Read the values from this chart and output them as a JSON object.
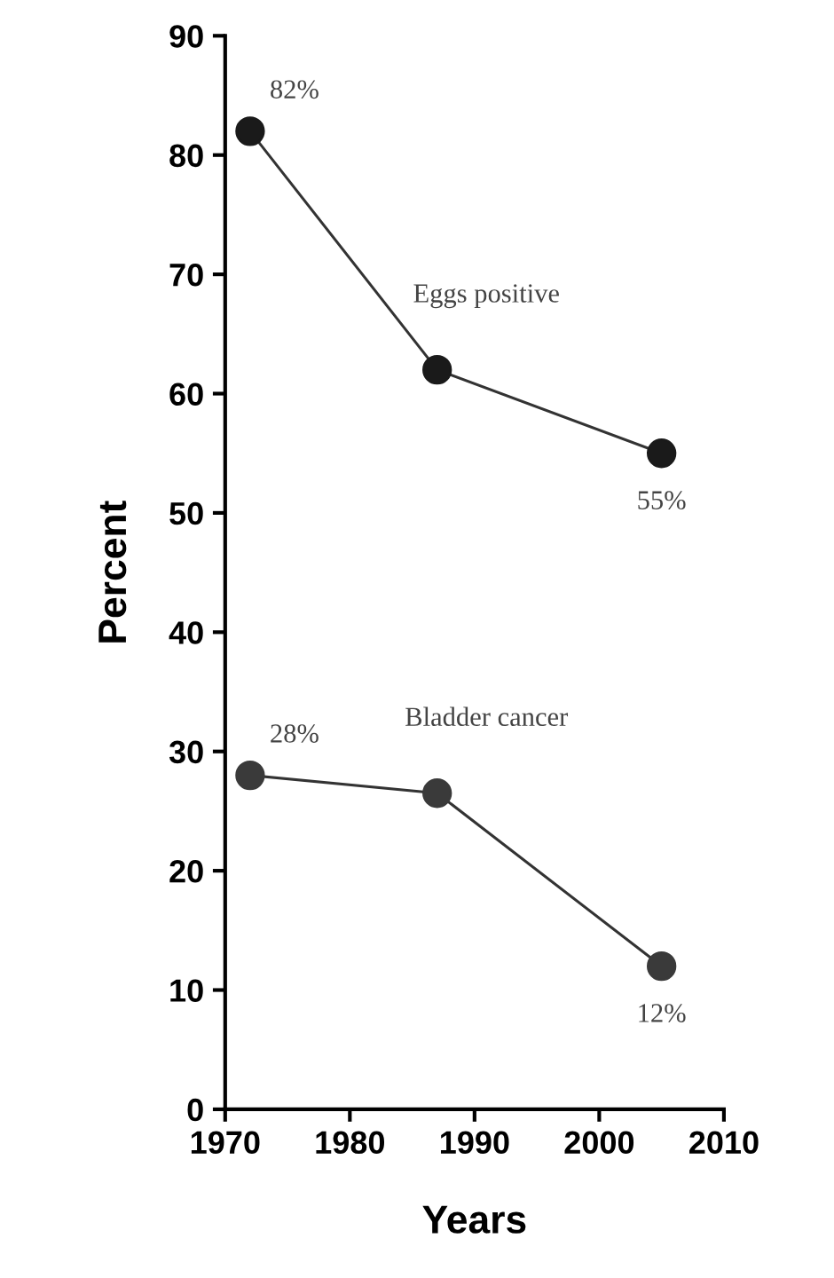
{
  "chart_data": {
    "type": "line",
    "xlabel": "Years",
    "ylabel": "Percent",
    "x": [
      1972,
      1987,
      2005
    ],
    "series": [
      {
        "name": "Eggs positive",
        "color": "#1a1a1a",
        "values": [
          82,
          62,
          55
        ],
        "value_labels": [
          "82%",
          null,
          "55%"
        ]
      },
      {
        "name": "Bladder cancer",
        "color": "#3a3a3a",
        "values": [
          28,
          26.5,
          12
        ],
        "value_labels": [
          "28%",
          null,
          "12%"
        ]
      }
    ],
    "xlim": [
      1970,
      2010
    ],
    "xticks": [
      1970,
      1980,
      1990,
      2000,
      2010
    ],
    "ylim": [
      0,
      90
    ],
    "yticks": [
      0,
      10,
      20,
      30,
      40,
      50,
      60,
      70,
      80,
      90
    ],
    "grid": false,
    "legend": false,
    "marker": "circle",
    "line_style": "solid"
  }
}
